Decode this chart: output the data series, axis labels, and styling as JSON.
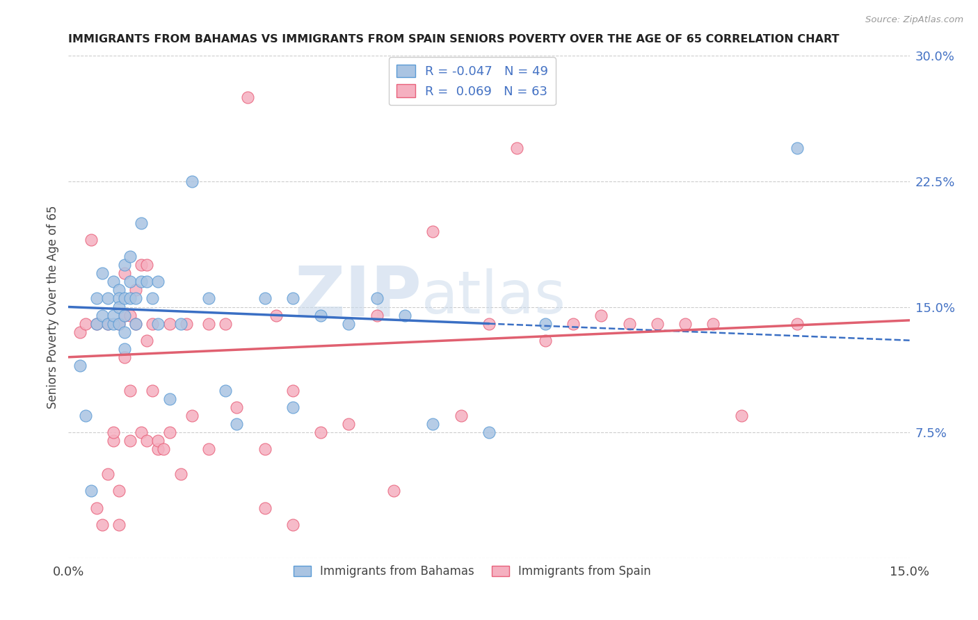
{
  "title": "IMMIGRANTS FROM BAHAMAS VS IMMIGRANTS FROM SPAIN SENIORS POVERTY OVER THE AGE OF 65 CORRELATION CHART",
  "source": "Source: ZipAtlas.com",
  "ylabel": "Seniors Poverty Over the Age of 65",
  "xlim": [
    0.0,
    0.15
  ],
  "ylim": [
    0.0,
    0.3
  ],
  "xticks": [
    0.0,
    0.05,
    0.1,
    0.15
  ],
  "xtick_labels": [
    "0.0%",
    "",
    "",
    "15.0%"
  ],
  "yticks": [
    0.0,
    0.075,
    0.15,
    0.225,
    0.3
  ],
  "ytick_labels_right": [
    "",
    "7.5%",
    "15.0%",
    "22.5%",
    "30.0%"
  ],
  "bahamas_R": "-0.047",
  "bahamas_N": "49",
  "spain_R": "0.069",
  "spain_N": "63",
  "bahamas_dot_face": "#aac4e2",
  "bahamas_dot_edge": "#5b9bd5",
  "spain_dot_face": "#f5b0c0",
  "spain_dot_edge": "#e8607a",
  "bahamas_line_color": "#3a6fc4",
  "spain_line_color": "#e06070",
  "watermark_zip": "ZIP",
  "watermark_atlas": "atlas",
  "legend_label_bahamas": "Immigrants from Bahamas",
  "legend_label_spain": "Immigrants from Spain",
  "bahamas_trend_x0": 0.0,
  "bahamas_trend_y0": 0.15,
  "bahamas_trend_x1": 0.075,
  "bahamas_trend_y1": 0.14,
  "bahamas_trend_xd0": 0.075,
  "bahamas_trend_yd0": 0.14,
  "bahamas_trend_xd1": 0.15,
  "bahamas_trend_yd1": 0.13,
  "spain_trend_x0": 0.0,
  "spain_trend_y0": 0.12,
  "spain_trend_x1": 0.15,
  "spain_trend_y1": 0.142,
  "bahamas_x": [
    0.002,
    0.003,
    0.004,
    0.005,
    0.005,
    0.006,
    0.006,
    0.007,
    0.007,
    0.008,
    0.008,
    0.008,
    0.009,
    0.009,
    0.009,
    0.009,
    0.01,
    0.01,
    0.01,
    0.01,
    0.01,
    0.011,
    0.011,
    0.011,
    0.012,
    0.012,
    0.013,
    0.013,
    0.014,
    0.015,
    0.016,
    0.016,
    0.018,
    0.02,
    0.022,
    0.025,
    0.028,
    0.03,
    0.035,
    0.04,
    0.04,
    0.045,
    0.05,
    0.055,
    0.06,
    0.065,
    0.075,
    0.085,
    0.13
  ],
  "bahamas_y": [
    0.115,
    0.085,
    0.04,
    0.14,
    0.155,
    0.145,
    0.17,
    0.155,
    0.14,
    0.14,
    0.145,
    0.165,
    0.16,
    0.155,
    0.15,
    0.14,
    0.175,
    0.155,
    0.145,
    0.135,
    0.125,
    0.18,
    0.165,
    0.155,
    0.155,
    0.14,
    0.2,
    0.165,
    0.165,
    0.155,
    0.165,
    0.14,
    0.095,
    0.14,
    0.225,
    0.155,
    0.1,
    0.08,
    0.155,
    0.155,
    0.09,
    0.145,
    0.14,
    0.155,
    0.145,
    0.08,
    0.075,
    0.14,
    0.245
  ],
  "spain_x": [
    0.002,
    0.003,
    0.004,
    0.005,
    0.005,
    0.006,
    0.007,
    0.007,
    0.008,
    0.008,
    0.009,
    0.009,
    0.009,
    0.01,
    0.01,
    0.01,
    0.011,
    0.011,
    0.011,
    0.012,
    0.012,
    0.013,
    0.013,
    0.014,
    0.014,
    0.014,
    0.015,
    0.015,
    0.016,
    0.016,
    0.017,
    0.018,
    0.018,
    0.02,
    0.021,
    0.022,
    0.025,
    0.025,
    0.028,
    0.03,
    0.032,
    0.035,
    0.035,
    0.037,
    0.04,
    0.04,
    0.045,
    0.05,
    0.055,
    0.058,
    0.065,
    0.07,
    0.075,
    0.08,
    0.085,
    0.09,
    0.095,
    0.1,
    0.105,
    0.11,
    0.115,
    0.12,
    0.13
  ],
  "spain_y": [
    0.135,
    0.14,
    0.19,
    0.03,
    0.14,
    0.02,
    0.05,
    0.14,
    0.07,
    0.075,
    0.02,
    0.04,
    0.14,
    0.12,
    0.145,
    0.17,
    0.07,
    0.1,
    0.145,
    0.14,
    0.16,
    0.075,
    0.175,
    0.07,
    0.13,
    0.175,
    0.1,
    0.14,
    0.065,
    0.07,
    0.065,
    0.075,
    0.14,
    0.05,
    0.14,
    0.085,
    0.065,
    0.14,
    0.14,
    0.09,
    0.275,
    0.03,
    0.065,
    0.145,
    0.02,
    0.1,
    0.075,
    0.08,
    0.145,
    0.04,
    0.195,
    0.085,
    0.14,
    0.245,
    0.13,
    0.14,
    0.145,
    0.14,
    0.14,
    0.14,
    0.14,
    0.085,
    0.14
  ]
}
